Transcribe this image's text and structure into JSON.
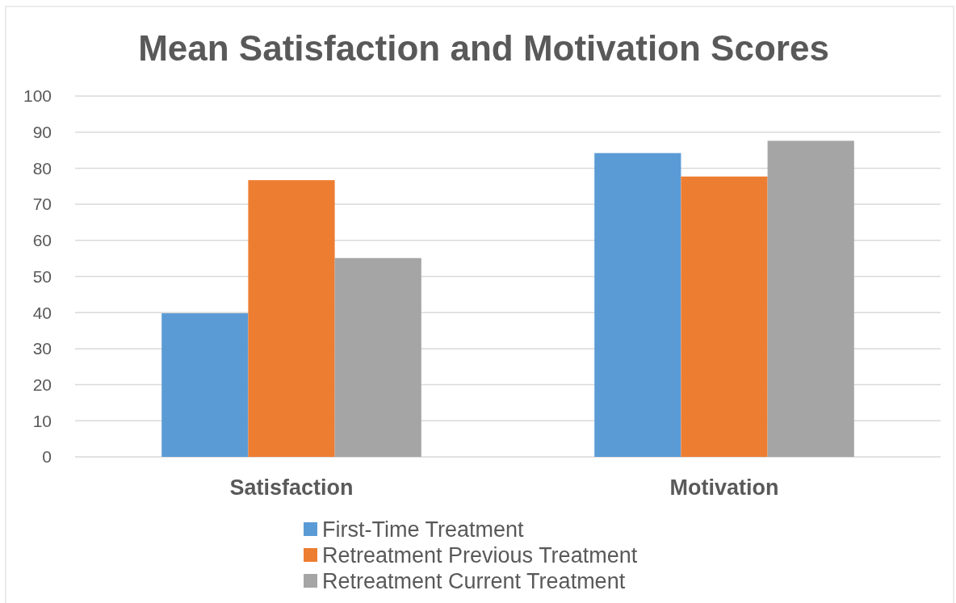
{
  "chart_data": {
    "type": "bar",
    "title": "Mean Satisfaction and Motivation Scores",
    "categories": [
      "Satisfaction",
      "Motivation"
    ],
    "series": [
      {
        "name": "First-Time Treatment",
        "color": "#5b9bd5",
        "values": [
          39.8,
          84.2
        ]
      },
      {
        "name": "Retreatment Previous Treatment",
        "color": "#ed7d31",
        "values": [
          76.7,
          77.7
        ]
      },
      {
        "name": "Retreatment Current Treatment",
        "color": "#a5a5a5",
        "values": [
          55.1,
          87.6
        ]
      }
    ],
    "ylim": [
      0,
      100
    ],
    "yticks": [
      0,
      10,
      20,
      30,
      40,
      50,
      60,
      70,
      80,
      90,
      100
    ],
    "grid": "y",
    "legend": "bottom"
  }
}
